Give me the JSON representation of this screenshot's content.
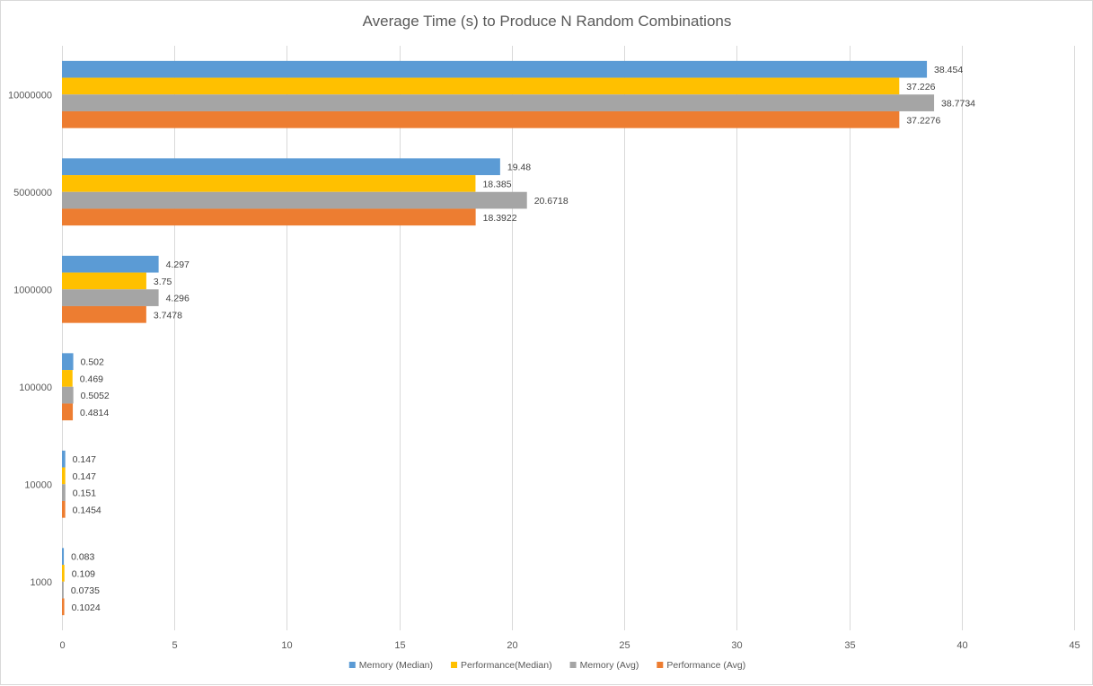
{
  "chart_data": {
    "type": "bar",
    "orientation": "horizontal",
    "title": "Average Time (s) to Produce N Random Combinations",
    "xlabel": "",
    "ylabel": "",
    "xlim": [
      0,
      45
    ],
    "x_ticks": [
      0,
      5,
      10,
      15,
      20,
      25,
      30,
      35,
      40,
      45
    ],
    "grid": true,
    "legend_position": "bottom",
    "categories": [
      "10000000",
      "5000000",
      "1000000",
      "100000",
      "10000",
      "1000"
    ],
    "series": [
      {
        "name": "Memory (Median)",
        "color": "#5B9BD5",
        "values": [
          38.454,
          19.48,
          4.297,
          0.502,
          0.147,
          0.083
        ],
        "labels": [
          "38.454",
          "19.48",
          "4.297",
          "0.502",
          "0.147",
          "0.083"
        ]
      },
      {
        "name": "Performance(Median)",
        "color": "#FFC000",
        "values": [
          37.226,
          18.385,
          3.75,
          0.469,
          0.147,
          0.109
        ],
        "labels": [
          "37.226",
          "18.385",
          "3.75",
          "0.469",
          "0.147",
          "0.109"
        ]
      },
      {
        "name": "Memory (Avg)",
        "color": "#A5A5A5",
        "values": [
          38.7734,
          20.6718,
          4.296,
          0.5052,
          0.151,
          0.0735
        ],
        "labels": [
          "38.7734",
          "20.6718",
          "4.296",
          "0.5052",
          "0.151",
          "0.0735"
        ]
      },
      {
        "name": "Performance (Avg)",
        "color": "#ED7D31",
        "values": [
          37.2276,
          18.3922,
          3.7478,
          0.4814,
          0.1454,
          0.1024
        ],
        "labels": [
          "37.2276",
          "18.3922",
          "3.7478",
          "0.4814",
          "0.1454",
          "0.1024"
        ]
      }
    ]
  }
}
